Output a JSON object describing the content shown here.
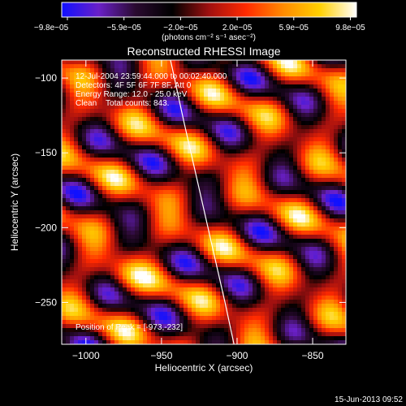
{
  "chart_data": {
    "type": "heatmap",
    "title": "Reconstructed RHESSI Image",
    "xlabel": "Heliocentric X (arcsec)",
    "ylabel": "Heliocentric Y (arcsec)",
    "xlim": [
      -1016,
      -828
    ],
    "ylim": [
      -278,
      -88
    ],
    "x_ticks": [
      {
        "value": -1000,
        "label": "−1000"
      },
      {
        "value": -950,
        "label": "−950"
      },
      {
        "value": -900,
        "label": "−900"
      },
      {
        "value": -850,
        "label": "−850"
      }
    ],
    "y_ticks": [
      {
        "value": -100,
        "label": "−100"
      },
      {
        "value": -150,
        "label": "−150"
      },
      {
        "value": -200,
        "label": "−200"
      },
      {
        "value": -250,
        "label": "−250"
      }
    ],
    "colorbar": {
      "range": [
        -9.8e-05,
        9.8e-05
      ],
      "tick_labels": [
        "−9.8e−05",
        "−5.9e−05",
        "−2.0e−05",
        "2.0e−05",
        "5.9e−05",
        "9.8e−05"
      ],
      "units_label": "(photons cm⁻² s⁻¹ asec⁻²)",
      "colors": [
        "#1010ff",
        "#6a20c8",
        "#2a0a30",
        "#000000",
        "#a01010",
        "#ff2a00",
        "#ff8a00",
        "#ffd000",
        "#ffffff"
      ]
    },
    "annotations": [
      "12-Jul-2004 23:59:44.000 to 00:02:40.000",
      "Detectors: 4F 5F 6F 7F 8F, Att 0",
      "Energy Range: 12.0 - 25.0 keV",
      "Clean    Total counts: 843."
    ],
    "peak": {
      "label": "Position of Peak = [-973,-232]",
      "x": -973,
      "y": -232
    },
    "limb_curve": [
      [
        -944,
        -88
      ],
      [
        -935,
        -130
      ],
      [
        -926,
        -170
      ],
      [
        -917,
        -210
      ],
      [
        -908,
        -250
      ],
      [
        -902,
        -278
      ]
    ],
    "footer": "15-Jun-2013 09:52"
  }
}
